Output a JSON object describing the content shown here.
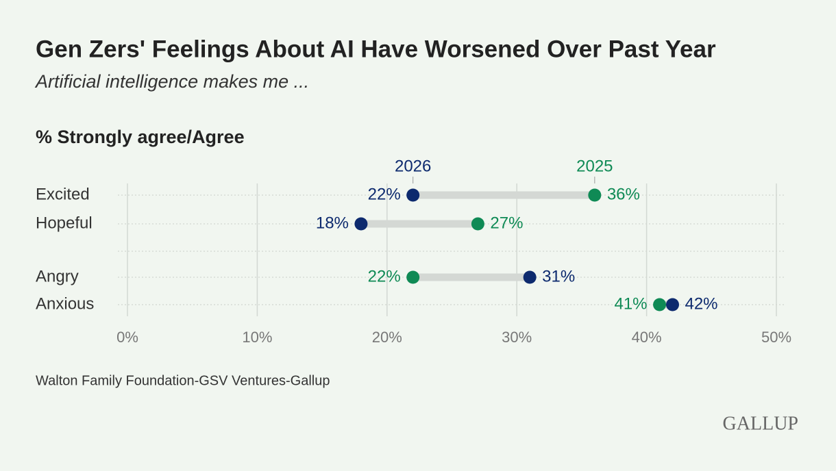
{
  "chart_data": {
    "type": "dumbbell",
    "title": "Gen Zers' Feelings About AI Have Worsened Over Past Year",
    "subtitle": "Artificial intelligence makes me ...",
    "axis_label": "% Strongly agree/Agree",
    "categories": [
      "Excited",
      "Hopeful",
      "Angry",
      "Anxious"
    ],
    "series": [
      {
        "name": "2026",
        "color": "#0d2a6e",
        "values": [
          22,
          18,
          31,
          42
        ],
        "value_labels": [
          "22%",
          "18%",
          "31%",
          "42%"
        ]
      },
      {
        "name": "2025",
        "color": "#0f8a55",
        "values": [
          36,
          27,
          22,
          41
        ],
        "value_labels": [
          "36%",
          "27%",
          "22%",
          "41%"
        ]
      }
    ],
    "xlim": [
      0,
      50
    ],
    "xticks": [
      {
        "value": 0,
        "label": "0%"
      },
      {
        "value": 10,
        "label": "10%"
      },
      {
        "value": 20,
        "label": "20%"
      },
      {
        "value": 30,
        "label": "30%"
      },
      {
        "value": 40,
        "label": "40%"
      },
      {
        "value": 50,
        "label": "50%"
      }
    ],
    "grid": true,
    "source": "Walton Family Foundation-GSV Ventures-Gallup",
    "logo": "GALLUP"
  }
}
